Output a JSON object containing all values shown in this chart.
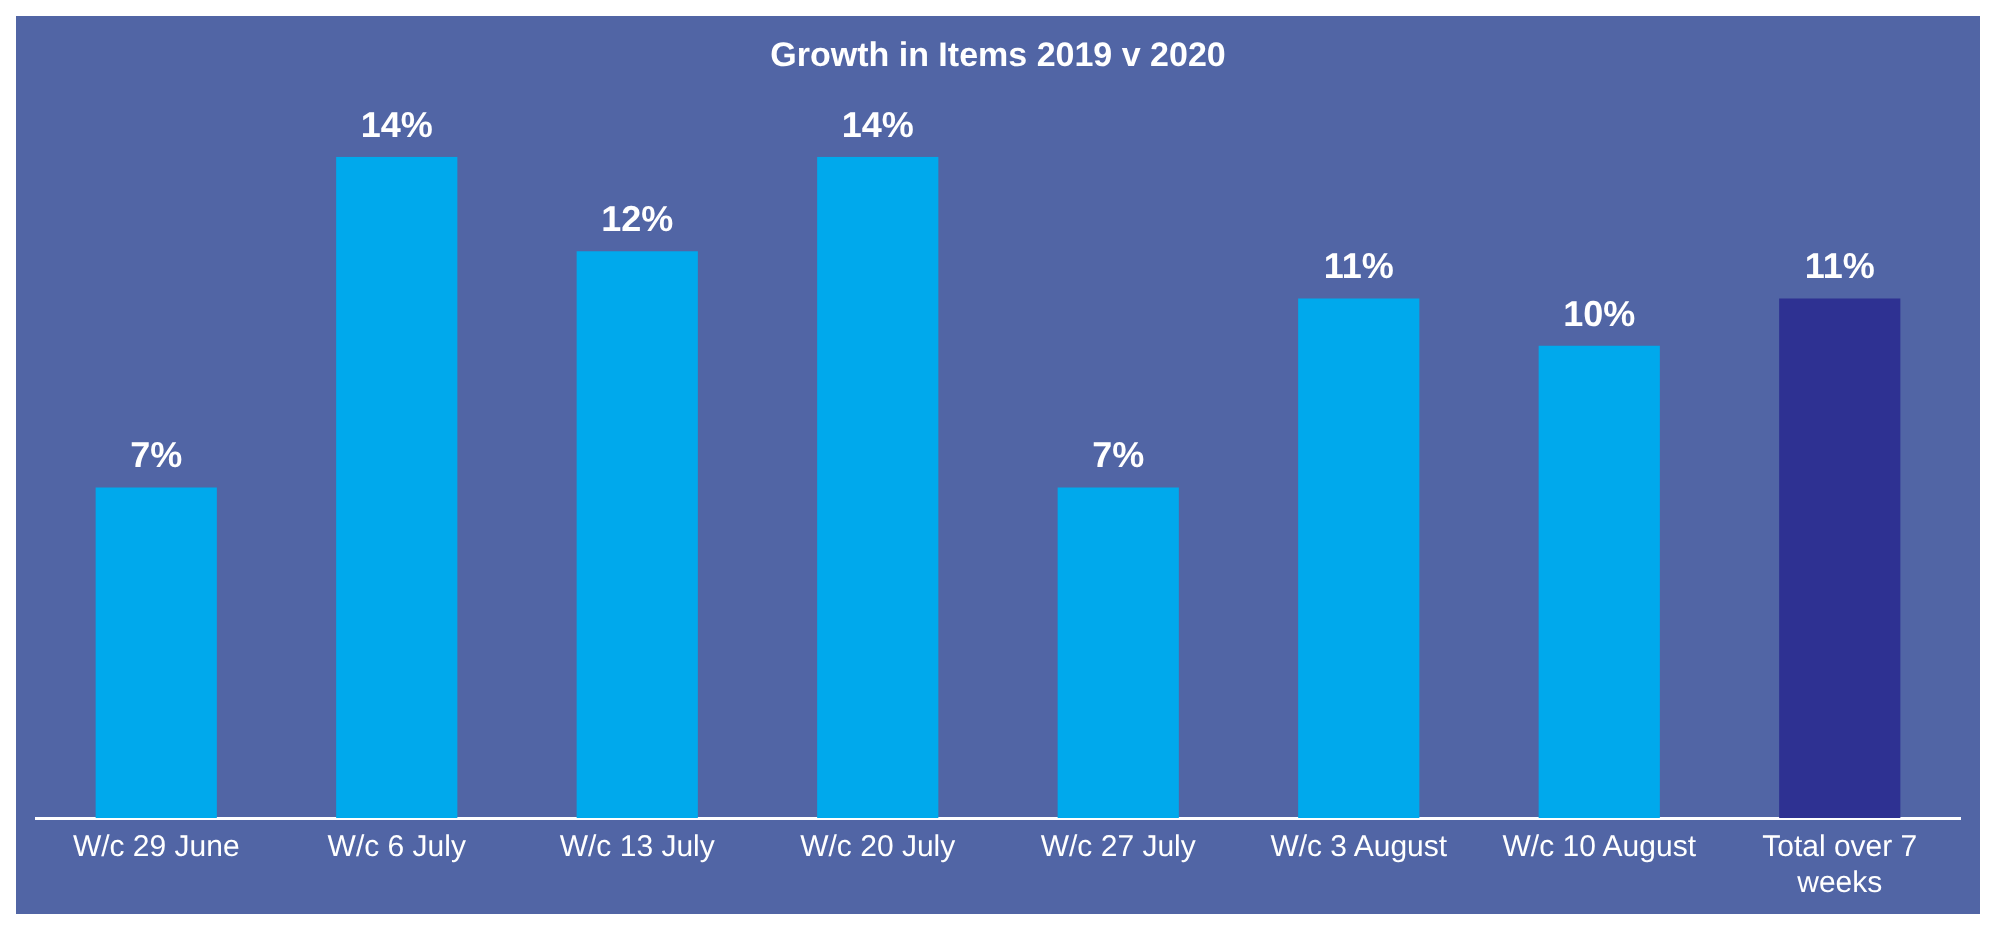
{
  "chart_data": {
    "type": "bar",
    "title": "Growth in Items 2019 v 2020",
    "categories": [
      "W/c 29 June",
      "W/c 6 July",
      "W/c 13 July",
      "W/c 20 July",
      "W/c 27 July",
      "W/c 3 August",
      "W/c 10 August",
      "Total over 7 weeks"
    ],
    "values": [
      7,
      14,
      12,
      14,
      7,
      11,
      10,
      11
    ],
    "colors": [
      "#00a9ec",
      "#00a9ec",
      "#00a9ec",
      "#00a9ec",
      "#00a9ec",
      "#00a9ec",
      "#00a9ec",
      "#2e3192"
    ],
    "value_labels": [
      "7%",
      "14%",
      "12%",
      "14%",
      "7%",
      "11%",
      "10%",
      "11%"
    ],
    "grid": false,
    "legend": false
  }
}
